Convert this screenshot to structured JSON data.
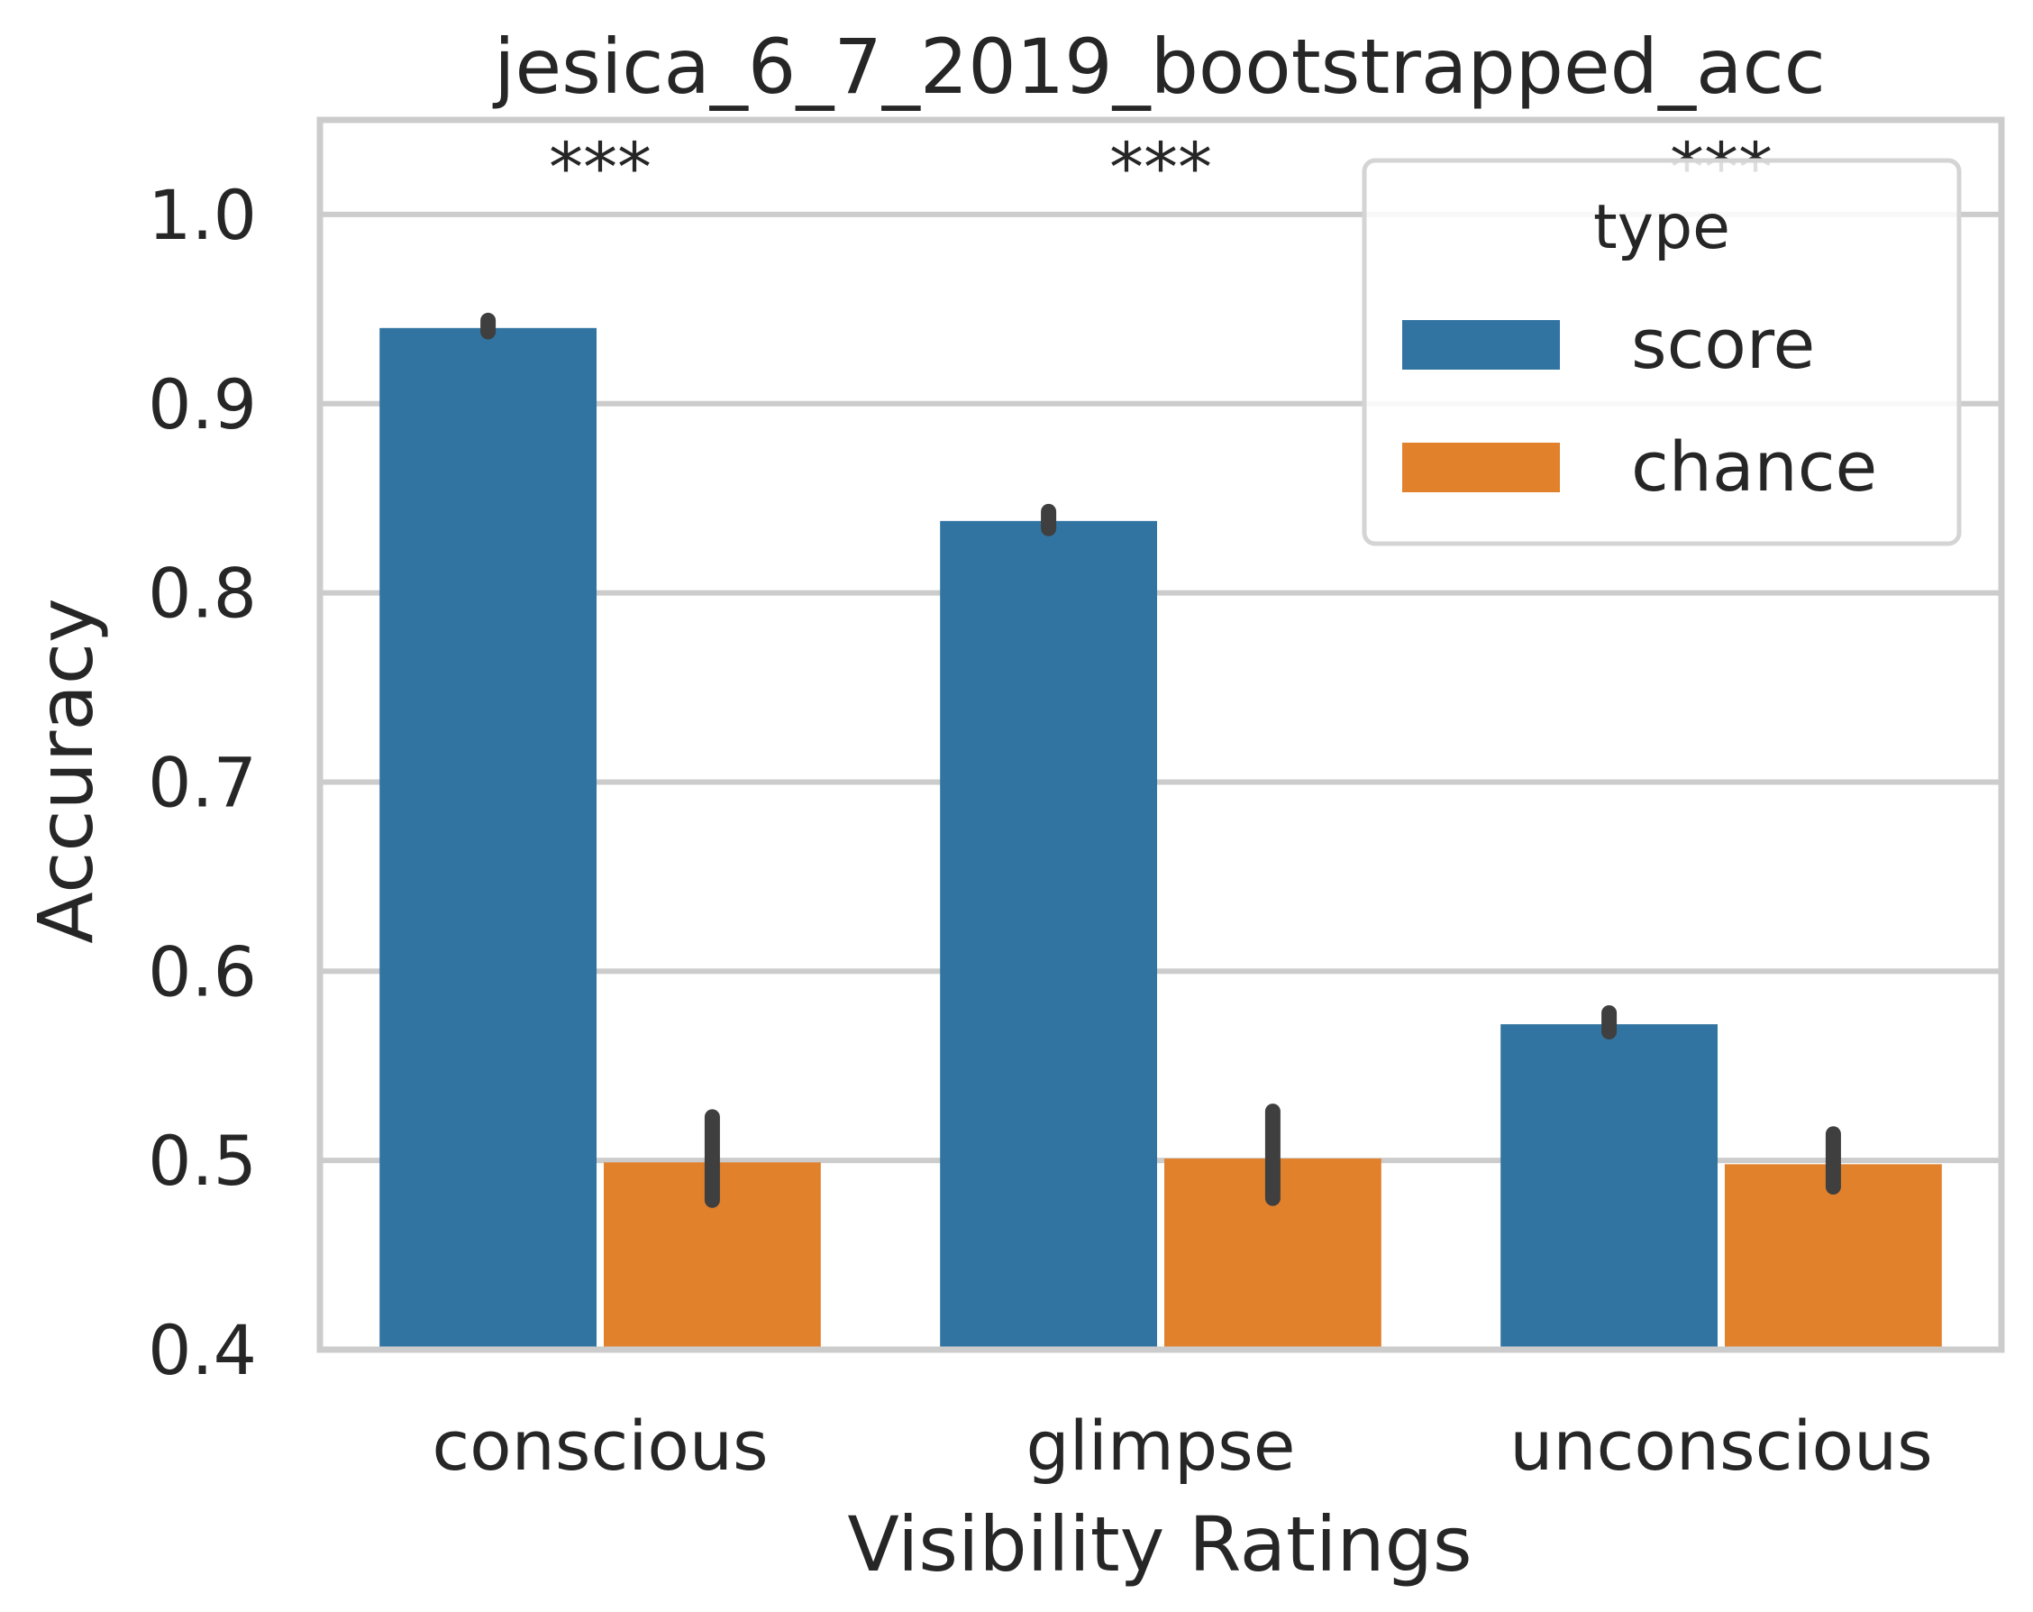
{
  "chart_data": {
    "type": "bar",
    "title": "jesica_6_7_2019_bootstrapped_acc",
    "xlabel": "Visibility Ratings",
    "ylabel": "Accuracy",
    "categories": [
      "conscious",
      "glimpse",
      "unconscious"
    ],
    "ylim": [
      0.4,
      1.05
    ],
    "yticks": [
      "0.4",
      "0.5",
      "0.6",
      "0.7",
      "0.8",
      "0.9",
      "1.0"
    ],
    "grid": true,
    "legend": {
      "title": "type",
      "placement": "top-right"
    },
    "series": [
      {
        "name": "score",
        "color": "#3274a1",
        "values": [
          0.94,
          0.838,
          0.572
        ],
        "ci": [
          [
            0.938,
            0.944
          ],
          [
            0.834,
            0.843
          ],
          [
            0.568,
            0.578
          ]
        ]
      },
      {
        "name": "chance",
        "color": "#e1812c",
        "values": [
          0.499,
          0.501,
          0.498
        ],
        "ci": [
          [
            0.479,
            0.523
          ],
          [
            0.48,
            0.526
          ],
          [
            0.486,
            0.514
          ]
        ]
      }
    ],
    "annotations": [
      "***",
      "***",
      "***"
    ]
  }
}
